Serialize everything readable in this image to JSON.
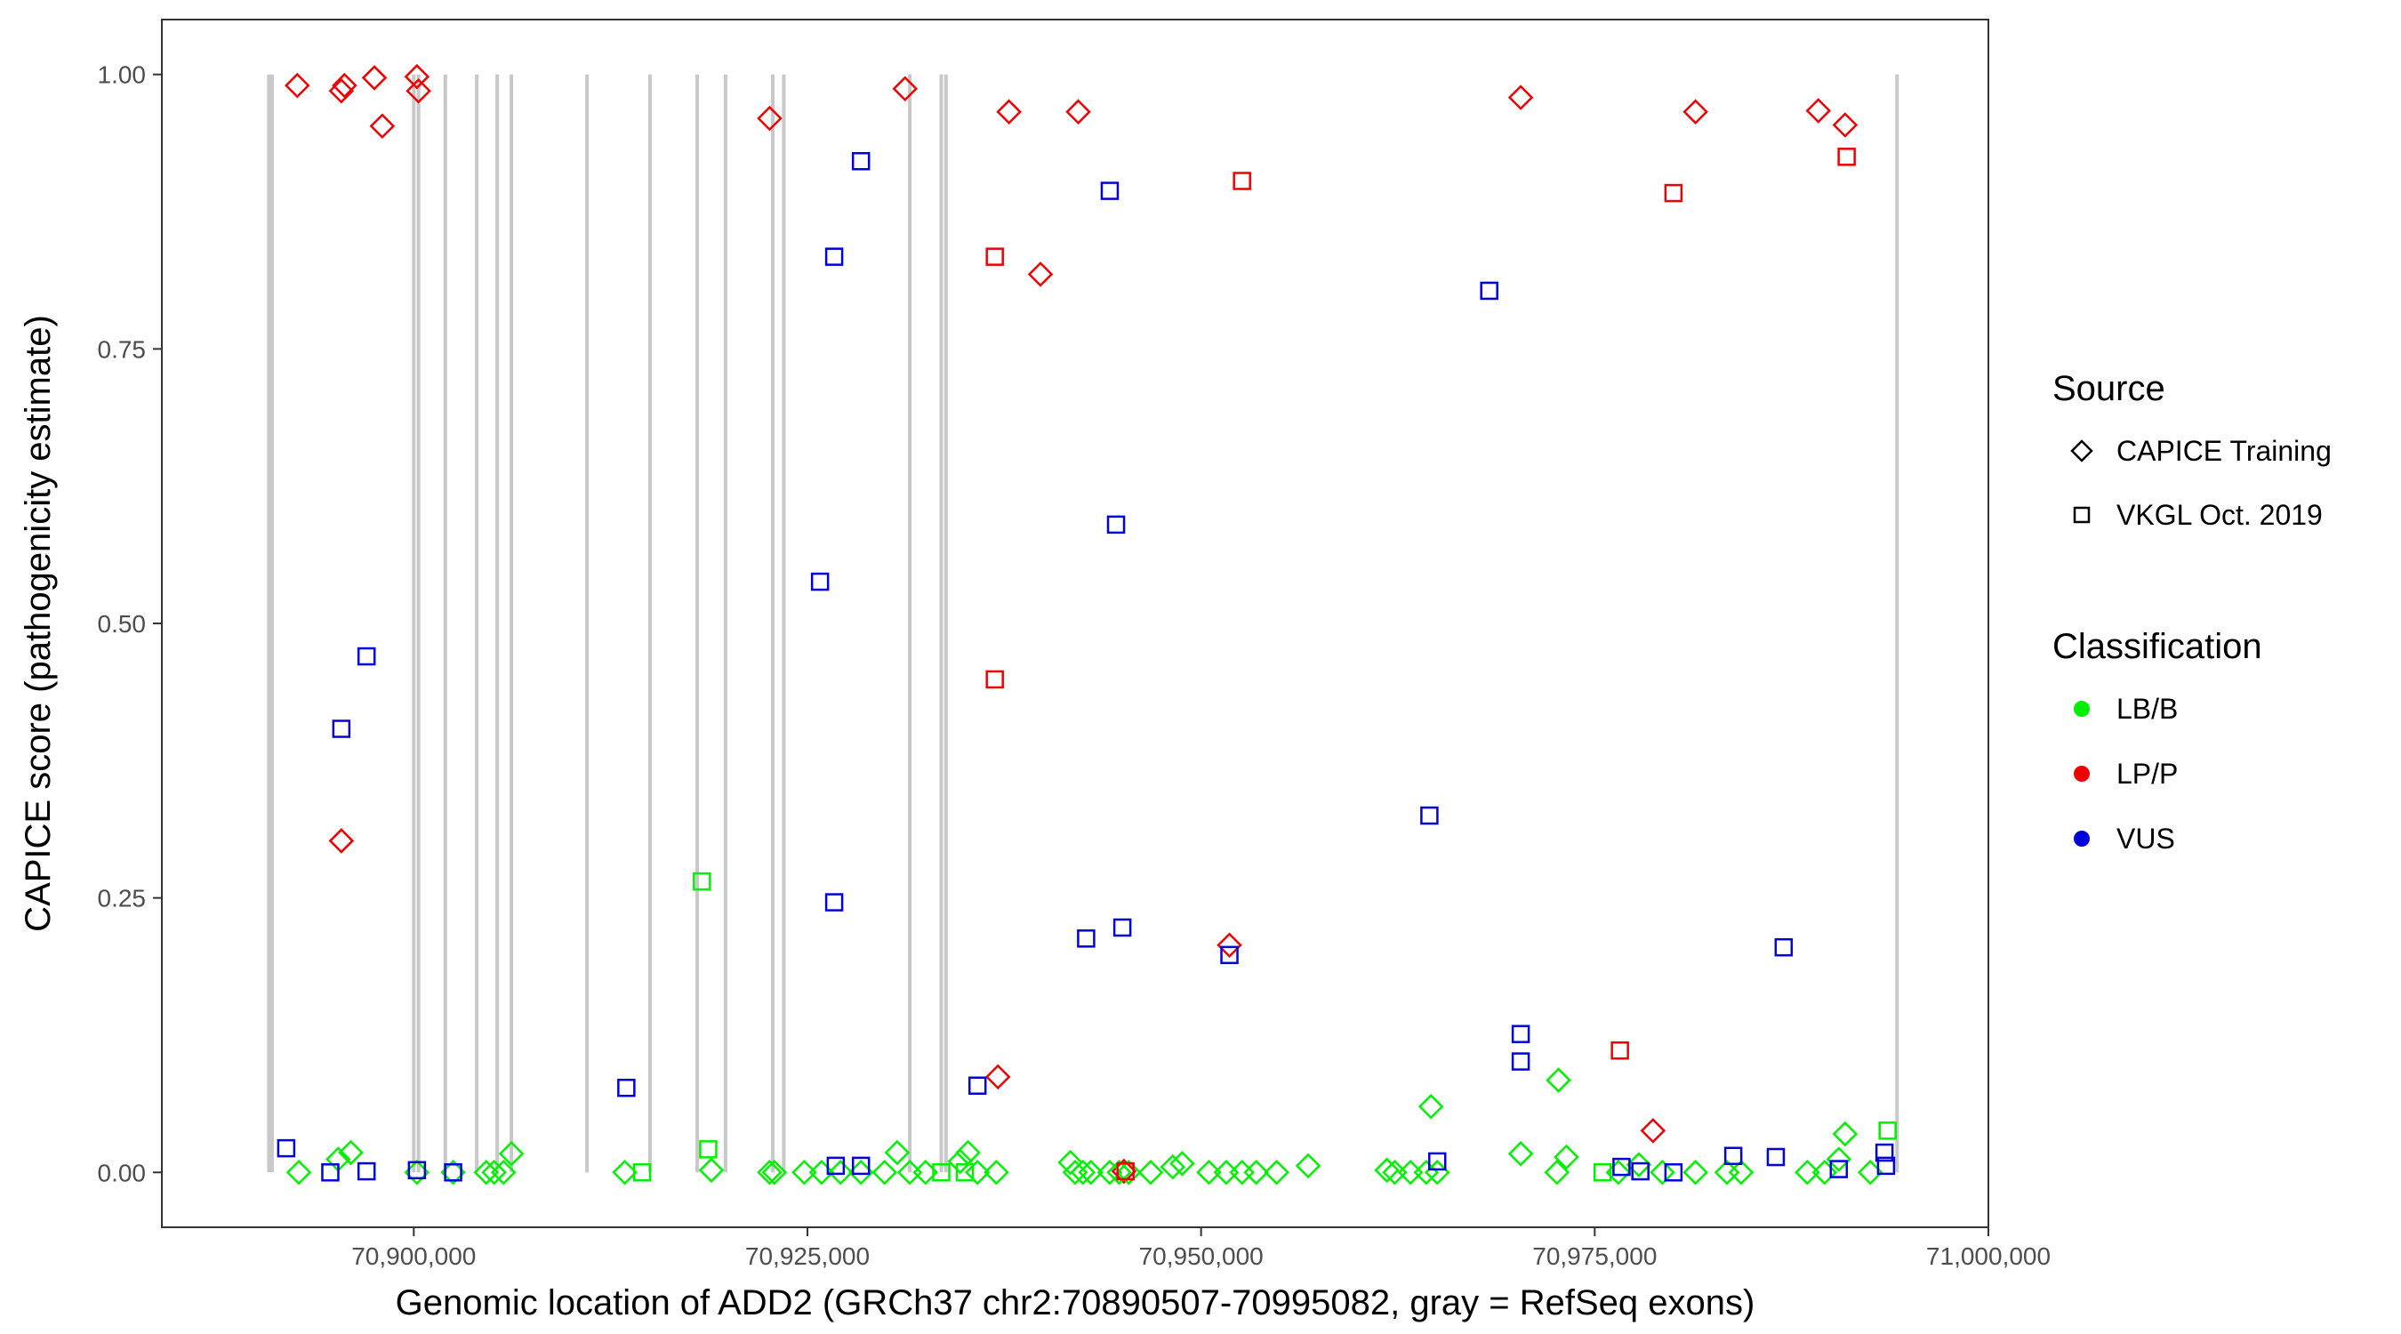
{
  "chart_data": {
    "type": "scatter",
    "xlabel": "Genomic location of ADD2 (GRCh37 chr2:70890507-70995082, gray = RefSeq exons)",
    "ylabel": "CAPICE score (pathogenicity estimate)",
    "xlim": [
      70884000,
      71000000
    ],
    "ylim": [
      -0.05,
      1.05
    ],
    "x_ticks": [
      70900000,
      70925000,
      70950000,
      70975000,
      71000000
    ],
    "x_tick_labels": [
      "70,900,000",
      "70,925,000",
      "70,950,000",
      "70,975,000",
      "71,000,000"
    ],
    "y_ticks": [
      0,
      0.25,
      0.5,
      0.75,
      1.0
    ],
    "y_tick_labels": [
      "0.00",
      "0.25",
      "0.50",
      "0.75",
      "1.00"
    ],
    "grid": false,
    "legend_placement": "right",
    "colors": {
      "LB/B": "#00ee00",
      "LP/P": "#ee0000",
      "VUS": "#0000dd",
      "exon": "#c8c8c8"
    },
    "exon_lines": [
      70890800,
      70891000,
      70900000,
      70900300,
      70902000,
      70904000,
      70905300,
      70906200,
      70911000,
      70915000,
      70918000,
      70919800,
      70922800,
      70923500,
      70931500,
      70933500,
      70933800,
      70994200
    ],
    "legend": {
      "source_title": "Source",
      "sources": [
        {
          "label": "CAPICE Training",
          "shape": "diamond"
        },
        {
          "label": "VKGL Oct. 2019",
          "shape": "square"
        }
      ],
      "class_title": "Classification",
      "classes": [
        {
          "label": "LB/B",
          "color": "#00ee00"
        },
        {
          "label": "LP/P",
          "color": "#ee0000"
        },
        {
          "label": "VUS",
          "color": "#0000dd"
        }
      ]
    },
    "series": [
      {
        "name": "CAPICE Training",
        "shape": "diamond",
        "points": [
          {
            "x": 70892600,
            "y": 0.99,
            "c": "LP/P"
          },
          {
            "x": 70895400,
            "y": 0.985,
            "c": "LP/P"
          },
          {
            "x": 70895600,
            "y": 0.99,
            "c": "LP/P"
          },
          {
            "x": 70897500,
            "y": 0.997,
            "c": "LP/P"
          },
          {
            "x": 70898000,
            "y": 0.953,
            "c": "LP/P"
          },
          {
            "x": 70900200,
            "y": 0.998,
            "c": "LP/P"
          },
          {
            "x": 70900300,
            "y": 0.985,
            "c": "LP/P"
          },
          {
            "x": 70895400,
            "y": 0.302,
            "c": "LP/P"
          },
          {
            "x": 70922600,
            "y": 0.96,
            "c": "LP/P"
          },
          {
            "x": 70931200,
            "y": 0.987,
            "c": "LP/P"
          },
          {
            "x": 70937800,
            "y": 0.966,
            "c": "LP/P"
          },
          {
            "x": 70942200,
            "y": 0.966,
            "c": "LP/P"
          },
          {
            "x": 70939800,
            "y": 0.818,
            "c": "LP/P"
          },
          {
            "x": 70937100,
            "y": 0.087,
            "c": "LP/P"
          },
          {
            "x": 70951800,
            "y": 0.207,
            "c": "LP/P"
          },
          {
            "x": 70945100,
            "y": 0.001,
            "c": "LP/P"
          },
          {
            "x": 70970300,
            "y": 0.979,
            "c": "LP/P"
          },
          {
            "x": 70981400,
            "y": 0.966,
            "c": "LP/P"
          },
          {
            "x": 70978700,
            "y": 0.038,
            "c": "LP/P"
          },
          {
            "x": 70989200,
            "y": 0.967,
            "c": "LP/P"
          },
          {
            "x": 70990900,
            "y": 0.954,
            "c": "LP/P"
          },
          {
            "x": 70892700,
            "y": 0.0,
            "c": "LB/B"
          },
          {
            "x": 70895200,
            "y": 0.012,
            "c": "LB/B"
          },
          {
            "x": 70896000,
            "y": 0.018,
            "c": "LB/B"
          },
          {
            "x": 70900200,
            "y": 0.0,
            "c": "LB/B"
          },
          {
            "x": 70902500,
            "y": 0.0,
            "c": "LB/B"
          },
          {
            "x": 70904600,
            "y": 0.0,
            "c": "LB/B"
          },
          {
            "x": 70905100,
            "y": 0.0,
            "c": "LB/B"
          },
          {
            "x": 70905700,
            "y": 0.0,
            "c": "LB/B"
          },
          {
            "x": 70906200,
            "y": 0.017,
            "c": "LB/B"
          },
          {
            "x": 70913400,
            "y": 0.0,
            "c": "LB/B"
          },
          {
            "x": 70918900,
            "y": 0.002,
            "c": "LB/B"
          },
          {
            "x": 70922600,
            "y": 0.0,
            "c": "LB/B"
          },
          {
            "x": 70922900,
            "y": 0.0,
            "c": "LB/B"
          },
          {
            "x": 70924800,
            "y": 0.0,
            "c": "LB/B"
          },
          {
            "x": 70925900,
            "y": 0.0,
            "c": "LB/B"
          },
          {
            "x": 70927100,
            "y": 0.0,
            "c": "LB/B"
          },
          {
            "x": 70928400,
            "y": 0.0,
            "c": "LB/B"
          },
          {
            "x": 70929900,
            "y": 0.0,
            "c": "LB/B"
          },
          {
            "x": 70930700,
            "y": 0.018,
            "c": "LB/B"
          },
          {
            "x": 70931500,
            "y": 0.0,
            "c": "LB/B"
          },
          {
            "x": 70932500,
            "y": 0.0,
            "c": "LB/B"
          },
          {
            "x": 70934700,
            "y": 0.01,
            "c": "LB/B"
          },
          {
            "x": 70935200,
            "y": 0.018,
            "c": "LB/B"
          },
          {
            "x": 70935800,
            "y": 0.0,
            "c": "LB/B"
          },
          {
            "x": 70937000,
            "y": 0.0,
            "c": "LB/B"
          },
          {
            "x": 70941700,
            "y": 0.009,
            "c": "LB/B"
          },
          {
            "x": 70942000,
            "y": 0.0,
            "c": "LB/B"
          },
          {
            "x": 70942500,
            "y": 0.0,
            "c": "LB/B"
          },
          {
            "x": 70943000,
            "y": 0.0,
            "c": "LB/B"
          },
          {
            "x": 70944200,
            "y": 0.0,
            "c": "LB/B"
          },
          {
            "x": 70944800,
            "y": 0.0,
            "c": "LB/B"
          },
          {
            "x": 70945400,
            "y": 0.0,
            "c": "LB/B"
          },
          {
            "x": 70946800,
            "y": 0.0,
            "c": "LB/B"
          },
          {
            "x": 70948200,
            "y": 0.005,
            "c": "LB/B"
          },
          {
            "x": 70948800,
            "y": 0.008,
            "c": "LB/B"
          },
          {
            "x": 70950500,
            "y": 0.0,
            "c": "LB/B"
          },
          {
            "x": 70951600,
            "y": 0.0,
            "c": "LB/B"
          },
          {
            "x": 70952600,
            "y": 0.0,
            "c": "LB/B"
          },
          {
            "x": 70953500,
            "y": 0.0,
            "c": "LB/B"
          },
          {
            "x": 70954800,
            "y": 0.0,
            "c": "LB/B"
          },
          {
            "x": 70956800,
            "y": 0.006,
            "c": "LB/B"
          },
          {
            "x": 70961800,
            "y": 0.002,
            "c": "LB/B"
          },
          {
            "x": 70962300,
            "y": 0.0,
            "c": "LB/B"
          },
          {
            "x": 70963300,
            "y": 0.0,
            "c": "LB/B"
          },
          {
            "x": 70964300,
            "y": 0.0,
            "c": "LB/B"
          },
          {
            "x": 70964600,
            "y": 0.06,
            "c": "LB/B"
          },
          {
            "x": 70965000,
            "y": 0.0,
            "c": "LB/B"
          },
          {
            "x": 70970300,
            "y": 0.017,
            "c": "LB/B"
          },
          {
            "x": 70972600,
            "y": 0.0,
            "c": "LB/B"
          },
          {
            "x": 70972700,
            "y": 0.084,
            "c": "LB/B"
          },
          {
            "x": 70973200,
            "y": 0.014,
            "c": "LB/B"
          },
          {
            "x": 70976500,
            "y": 0.0,
            "c": "LB/B"
          },
          {
            "x": 70977800,
            "y": 0.007,
            "c": "LB/B"
          },
          {
            "x": 70979300,
            "y": 0.0,
            "c": "LB/B"
          },
          {
            "x": 70981400,
            "y": 0.0,
            "c": "LB/B"
          },
          {
            "x": 70983400,
            "y": 0.0,
            "c": "LB/B"
          },
          {
            "x": 70984300,
            "y": 0.0,
            "c": "LB/B"
          },
          {
            "x": 70988500,
            "y": 0.0,
            "c": "LB/B"
          },
          {
            "x": 70989600,
            "y": 0.0,
            "c": "LB/B"
          },
          {
            "x": 70990500,
            "y": 0.012,
            "c": "LB/B"
          },
          {
            "x": 70990900,
            "y": 0.035,
            "c": "LB/B"
          },
          {
            "x": 70992500,
            "y": 0.0,
            "c": "LB/B"
          }
        ]
      },
      {
        "name": "VKGL Oct. 2019",
        "shape": "square",
        "points": [
          {
            "x": 70891900,
            "y": 0.022,
            "c": "VUS"
          },
          {
            "x": 70894700,
            "y": 0.0,
            "c": "VUS"
          },
          {
            "x": 70895400,
            "y": 0.404,
            "c": "VUS"
          },
          {
            "x": 70897000,
            "y": 0.47,
            "c": "VUS"
          },
          {
            "x": 70897000,
            "y": 0.001,
            "c": "VUS"
          },
          {
            "x": 70900200,
            "y": 0.002,
            "c": "VUS"
          },
          {
            "x": 70902500,
            "y": 0.0,
            "c": "VUS"
          },
          {
            "x": 70913500,
            "y": 0.077,
            "c": "VUS"
          },
          {
            "x": 70925800,
            "y": 0.538,
            "c": "VUS"
          },
          {
            "x": 70926700,
            "y": 0.834,
            "c": "VUS"
          },
          {
            "x": 70926700,
            "y": 0.246,
            "c": "VUS"
          },
          {
            "x": 70926800,
            "y": 0.006,
            "c": "VUS"
          },
          {
            "x": 70928400,
            "y": 0.921,
            "c": "VUS"
          },
          {
            "x": 70928400,
            "y": 0.006,
            "c": "VUS"
          },
          {
            "x": 70935800,
            "y": 0.079,
            "c": "VUS"
          },
          {
            "x": 70942700,
            "y": 0.213,
            "c": "VUS"
          },
          {
            "x": 70944200,
            "y": 0.894,
            "c": "VUS"
          },
          {
            "x": 70944600,
            "y": 0.59,
            "c": "VUS"
          },
          {
            "x": 70945000,
            "y": 0.223,
            "c": "VUS"
          },
          {
            "x": 70951800,
            "y": 0.198,
            "c": "VUS"
          },
          {
            "x": 70964500,
            "y": 0.325,
            "c": "VUS"
          },
          {
            "x": 70965000,
            "y": 0.01,
            "c": "VUS"
          },
          {
            "x": 70968300,
            "y": 0.803,
            "c": "VUS"
          },
          {
            "x": 70970300,
            "y": 0.126,
            "c": "VUS"
          },
          {
            "x": 70970300,
            "y": 0.101,
            "c": "VUS"
          },
          {
            "x": 70976700,
            "y": 0.005,
            "c": "VUS"
          },
          {
            "x": 70977900,
            "y": 0.001,
            "c": "VUS"
          },
          {
            "x": 70980000,
            "y": 0.0,
            "c": "VUS"
          },
          {
            "x": 70983800,
            "y": 0.015,
            "c": "VUS"
          },
          {
            "x": 70986500,
            "y": 0.014,
            "c": "VUS"
          },
          {
            "x": 70987000,
            "y": 0.205,
            "c": "VUS"
          },
          {
            "x": 70990500,
            "y": 0.003,
            "c": "VUS"
          },
          {
            "x": 70993400,
            "y": 0.018,
            "c": "VUS"
          },
          {
            "x": 70993500,
            "y": 0.006,
            "c": "VUS"
          },
          {
            "x": 70936900,
            "y": 0.834,
            "c": "LP/P"
          },
          {
            "x": 70936900,
            "y": 0.449,
            "c": "LP/P"
          },
          {
            "x": 70952600,
            "y": 0.903,
            "c": "LP/P"
          },
          {
            "x": 70976600,
            "y": 0.111,
            "c": "LP/P"
          },
          {
            "x": 70980000,
            "y": 0.892,
            "c": "LP/P"
          },
          {
            "x": 70991000,
            "y": 0.925,
            "c": "LP/P"
          },
          {
            "x": 70945200,
            "y": 0.001,
            "c": "LP/P"
          },
          {
            "x": 70914500,
            "y": 0.0,
            "c": "LB/B"
          },
          {
            "x": 70918300,
            "y": 0.265,
            "c": "LB/B"
          },
          {
            "x": 70918700,
            "y": 0.021,
            "c": "LB/B"
          },
          {
            "x": 70933500,
            "y": 0.0,
            "c": "LB/B"
          },
          {
            "x": 70935000,
            "y": 0.0,
            "c": "LB/B"
          },
          {
            "x": 70975500,
            "y": 0.0,
            "c": "LB/B"
          },
          {
            "x": 70993600,
            "y": 0.038,
            "c": "LB/B"
          }
        ]
      }
    ]
  }
}
